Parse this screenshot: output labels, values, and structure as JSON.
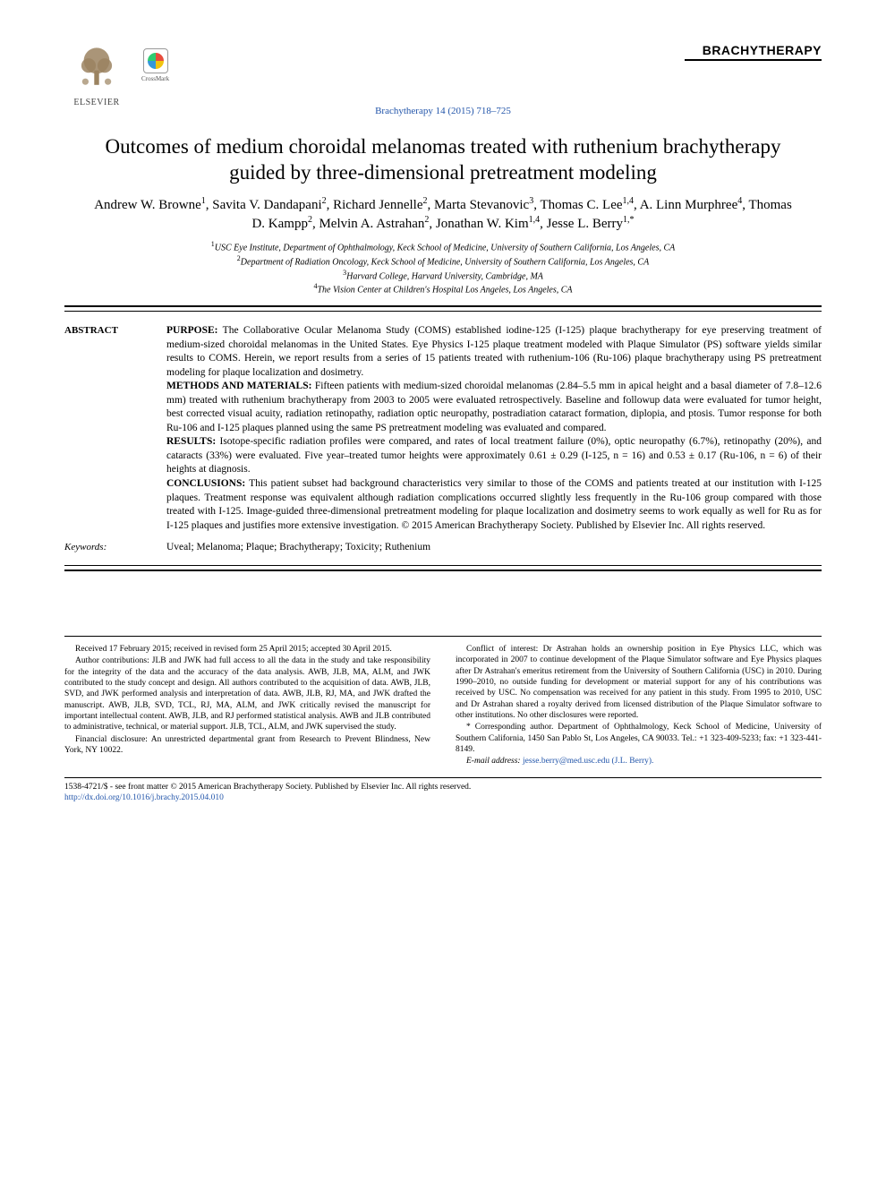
{
  "header": {
    "publisher": "ELSEVIER",
    "crossmark": "CrossMark",
    "journal_brand": "BRACHYTHERAPY",
    "journal_ref": "Brachytherapy 14 (2015) 718–725"
  },
  "title": "Outcomes of medium choroidal melanomas treated with ruthenium brachytherapy guided by three-dimensional pretreatment modeling",
  "authors_html": "Andrew W. Browne<sup>1</sup>, Savita V. Dandapani<sup>2</sup>, Richard Jennelle<sup>2</sup>, Marta Stevanovic<sup>3</sup>, Thomas C. Lee<sup>1,4</sup>, A. Linn Murphree<sup>4</sup>, Thomas D. Kampp<sup>2</sup>, Melvin A. Astrahan<sup>2</sup>, Jonathan W. Kim<sup>1,4</sup>, Jesse L. Berry<sup>1,*</sup>",
  "affiliations": [
    {
      "num": "1",
      "text": "USC Eye Institute, Department of Ophthalmology, Keck School of Medicine, University of Southern California, Los Angeles, CA"
    },
    {
      "num": "2",
      "text": "Department of Radiation Oncology, Keck School of Medicine, University of Southern California, Los Angeles, CA"
    },
    {
      "num": "3",
      "text": "Harvard College, Harvard University, Cambridge, MA"
    },
    {
      "num": "4",
      "text": "The Vision Center at Children's Hospital Los Angeles, Los Angeles, CA"
    }
  ],
  "abstract": {
    "label": "ABSTRACT",
    "sections": {
      "purpose_label": "PURPOSE:",
      "purpose": "The Collaborative Ocular Melanoma Study (COMS) established iodine-125 (I-125) plaque brachytherapy for eye preserving treatment of medium-sized choroidal melanomas in the United States. Eye Physics I-125 plaque treatment modeled with Plaque Simulator (PS) software yields similar results to COMS. Herein, we report results from a series of 15 patients treated with ruthenium-106 (Ru-106) plaque brachytherapy using PS pretreatment modeling for plaque localization and dosimetry.",
      "methods_label": "METHODS AND MATERIALS:",
      "methods": "Fifteen patients with medium-sized choroidal melanomas (2.84–5.5 mm in apical height and a basal diameter of 7.8–12.6 mm) treated with ruthenium brachytherapy from 2003 to 2005 were evaluated retrospectively. Baseline and followup data were evaluated for tumor height, best corrected visual acuity, radiation retinopathy, radiation optic neuropathy, postradiation cataract formation, diplopia, and ptosis. Tumor response for both Ru-106 and I-125 plaques planned using the same PS pretreatment modeling was evaluated and compared.",
      "results_label": "RESULTS:",
      "results": "Isotope-specific radiation profiles were compared, and rates of local treatment failure (0%), optic neuropathy (6.7%), retinopathy (20%), and cataracts (33%) were evaluated. Five year–treated tumor heights were approximately 0.61 ± 0.29 (I-125, n = 16) and 0.53 ± 0.17 (Ru-106, n = 6) of their heights at diagnosis.",
      "conclusions_label": "CONCLUSIONS:",
      "conclusions": "This patient subset had background characteristics very similar to those of the COMS and patients treated at our institution with I-125 plaques. Treatment response was equivalent although radiation complications occurred slightly less frequently in the Ru-106 group compared with those treated with I-125. Image-guided three-dimensional pretreatment modeling for plaque localization and dosimetry seems to work equally as well for Ru as for I-125 plaques and justifies more extensive investigation. © 2015 American Brachytherapy Society. Published by Elsevier Inc. All rights reserved."
    }
  },
  "keywords": {
    "label": "Keywords:",
    "text": "Uveal; Melanoma; Plaque; Brachytherapy; Toxicity; Ruthenium"
  },
  "footnotes": {
    "left": [
      "Received 17 February 2015; received in revised form 25 April 2015; accepted 30 April 2015.",
      "Author contributions: JLB and JWK had full access to all the data in the study and take responsibility for the integrity of the data and the accuracy of the data analysis. AWB, JLB, MA, ALM, and JWK contributed to the study concept and design. All authors contributed to the acquisition of data. AWB, JLB, SVD, and JWK performed analysis and interpretation of data. AWB, JLB, RJ, MA, and JWK drafted the manuscript. AWB, JLB, SVD, TCL, RJ, MA, ALM, and JWK critically revised the manuscript for important intellectual content. AWB, JLB, and RJ performed statistical analysis. AWB and JLB contributed to administrative, technical, or material support. JLB, TCL, ALM, and JWK supervised the study.",
      "Financial disclosure: An unrestricted departmental grant from Research to Prevent Blindness, New York, NY 10022."
    ],
    "right": [
      "Conflict of interest: Dr Astrahan holds an ownership position in Eye Physics LLC, which was incorporated in 2007 to continue development of the Plaque Simulator software and Eye Physics plaques after Dr Astrahan's emeritus retirement from the University of Southern California (USC) in 2010. During 1990–2010, no outside funding for development or material support for any of his contributions was received by USC. No compensation was received for any patient in this study. From 1995 to 2010, USC and Dr Astrahan shared a royalty derived from licensed distribution of the Plaque Simulator software to other institutions. No other disclosures were reported.",
      "* Corresponding author. Department of Ophthalmology, Keck School of Medicine, University of Southern California, 1450 San Pablo St, Los Angeles, CA 90033. Tel.: +1 323-409-5233; fax: +1 323-441-8149.",
      "E-mail address: jesse.berry@med.usc.edu (J.L. Berry)."
    ]
  },
  "footer": {
    "copyright": "1538-4721/$ - see front matter © 2015 American Brachytherapy Society. Published by Elsevier Inc. All rights reserved.",
    "doi": "http://dx.doi.org/10.1016/j.brachy.2015.04.010"
  }
}
